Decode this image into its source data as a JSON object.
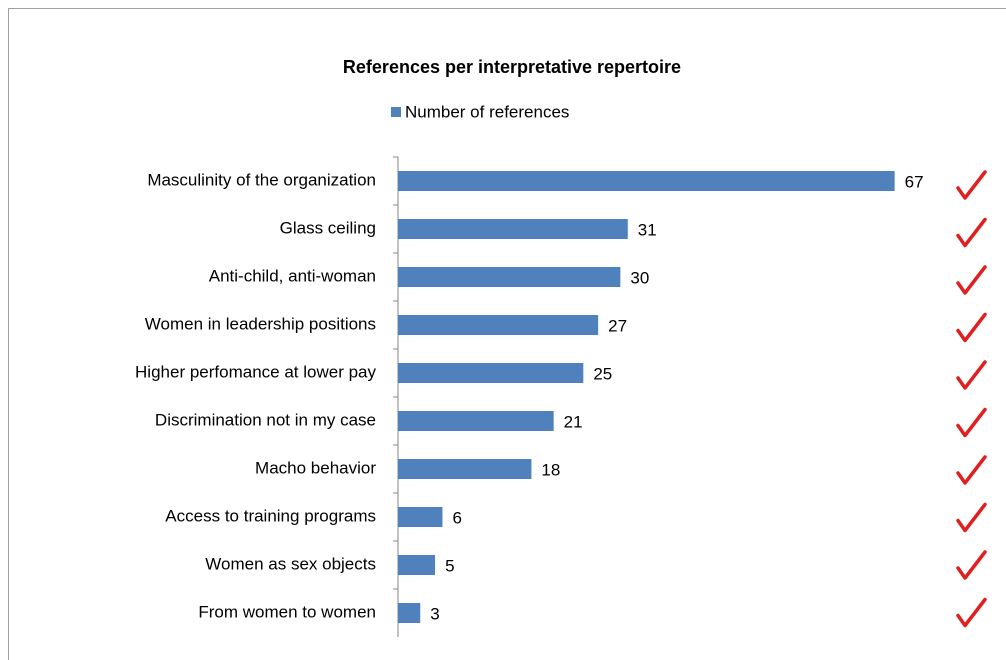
{
  "chart_data": {
    "type": "bar",
    "orientation": "horizontal",
    "title": "References per interpretative repertoire",
    "legend": "top",
    "series": [
      {
        "name": "Number of references",
        "color": "#4f81bd",
        "values": [
          67,
          31,
          30,
          27,
          25,
          21,
          18,
          6,
          5,
          3
        ]
      }
    ],
    "categories": [
      "Masculinity of the organization",
      "Glass ceiling",
      "Anti-child, anti-woman",
      "Women in leadership positions",
      "Higher perfomance at lower pay",
      "Discrimination not in my case",
      "Macho behavior",
      "Access to training programs",
      "Women as sex objects",
      "From women to women"
    ],
    "xlim": [
      0,
      80
    ]
  }
}
